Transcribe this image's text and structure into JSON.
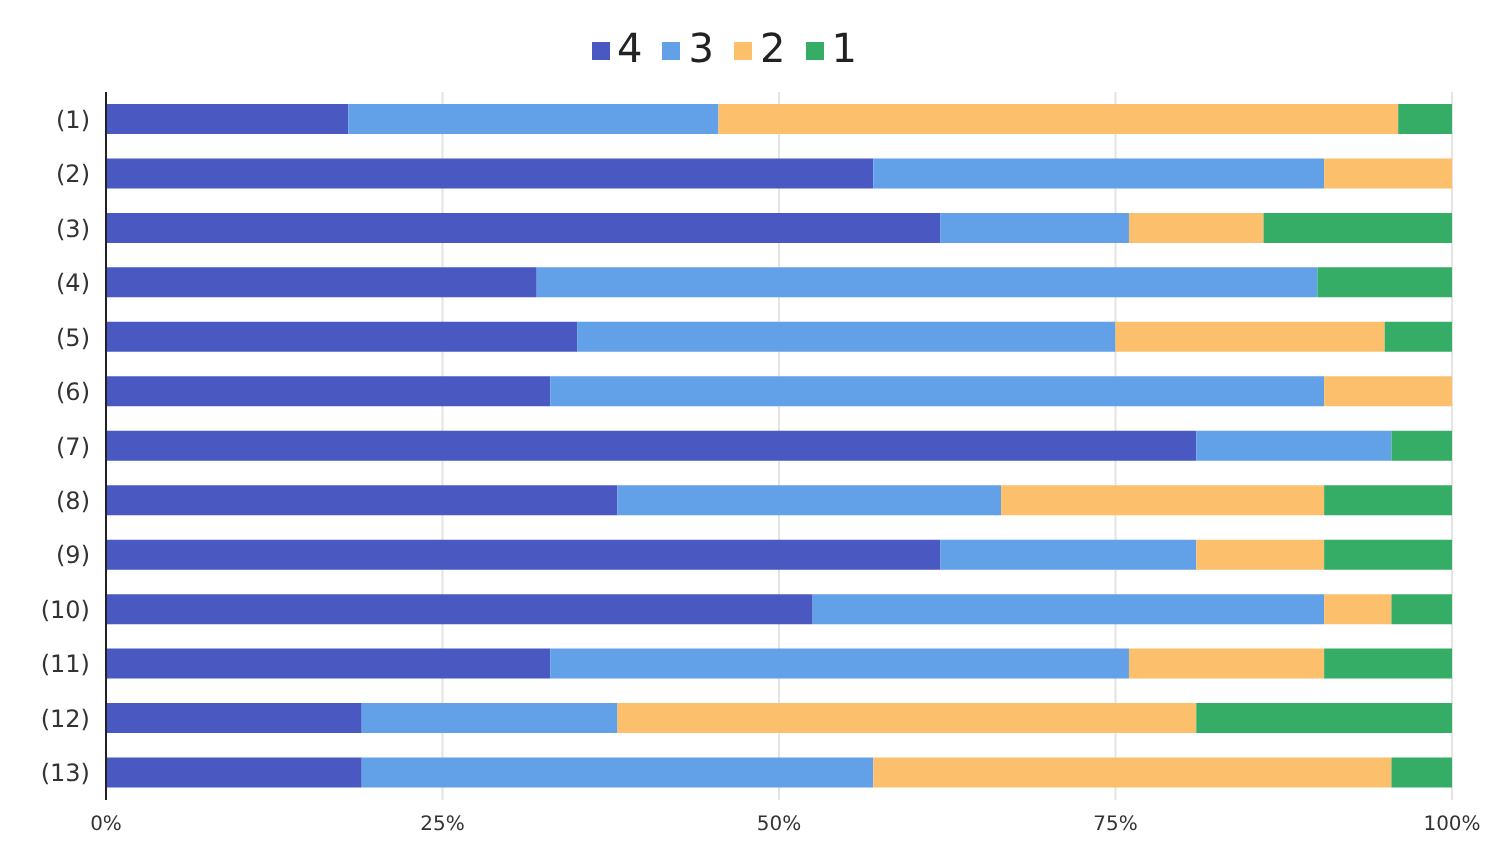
{
  "chart_data": {
    "type": "bar",
    "orientation": "horizontal",
    "stacked": true,
    "categories": [
      "(1)",
      "(2)",
      "(3)",
      "(4)",
      "(5)",
      "(6)",
      "(7)",
      "(8)",
      "(9)",
      "(10)",
      "(11)",
      "(12)",
      "(13)"
    ],
    "series": [
      {
        "name": "4",
        "color": "#4a58c2",
        "values": [
          18,
          57,
          62,
          32,
          35,
          33,
          81,
          38,
          62,
          52.5,
          33,
          19,
          19
        ]
      },
      {
        "name": "3",
        "color": "#62a0e8",
        "values": [
          27.5,
          33.5,
          14,
          58,
          40,
          57.5,
          14.5,
          28.5,
          19,
          38,
          43,
          19,
          38
        ]
      },
      {
        "name": "2",
        "color": "#fcbf6c",
        "values": [
          50.5,
          9.5,
          10,
          0,
          20,
          9.5,
          0,
          24,
          9.5,
          5,
          14.5,
          43,
          38.5
        ]
      },
      {
        "name": "1",
        "color": "#35ad67",
        "values": [
          4,
          0,
          14,
          10,
          5,
          0,
          4.5,
          9.5,
          9.5,
          4.5,
          9.5,
          19,
          4.5
        ]
      }
    ],
    "xlim": [
      0,
      100
    ],
    "xticks": [
      {
        "value": 0,
        "label": "0%"
      },
      {
        "value": 25,
        "label": "25%"
      },
      {
        "value": 50,
        "label": "50%"
      },
      {
        "value": 75,
        "label": "75%"
      },
      {
        "value": 100,
        "label": "100%"
      }
    ],
    "grid": "x",
    "legend": "top"
  }
}
